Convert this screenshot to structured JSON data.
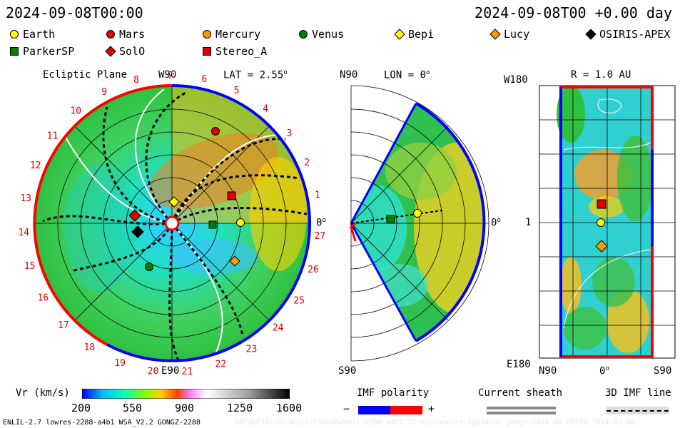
{
  "header": {
    "left_time": "2024-09-08T00:00",
    "right_time": "2024-09-08T00 +0.00 day"
  },
  "legend": [
    {
      "name": "Earth",
      "marker": "circle",
      "color": "#ffff00"
    },
    {
      "name": "Mars",
      "marker": "circle",
      "color": "#e00000"
    },
    {
      "name": "Mercury",
      "marker": "circle",
      "color": "#ff9900"
    },
    {
      "name": "Venus",
      "marker": "circle",
      "color": "#008000"
    },
    {
      "name": "Bepi",
      "marker": "diamond",
      "color": "#ffff00"
    },
    {
      "name": "Lucy",
      "marker": "diamond",
      "color": "#ff9900"
    },
    {
      "name": "OSIRIS-APEX",
      "marker": "diamond",
      "color": "#000000"
    },
    {
      "name": "ParkerSP",
      "marker": "square",
      "color": "#008000"
    },
    {
      "name": "SolO",
      "marker": "diamond",
      "color": "#e00000"
    },
    {
      "name": "Stereo_A",
      "marker": "square",
      "color": "#e00000"
    }
  ],
  "ecliptic": {
    "title": "Ecliptic Plane",
    "lat": "LAT = 2.55",
    "top_label": "W90",
    "bottom_label": "E90",
    "right_label": "0",
    "carrington_numbers": [
      "1",
      "2",
      "3",
      "4",
      "5",
      "6",
      "7",
      "8",
      "9",
      "10",
      "11",
      "12",
      "13",
      "14",
      "15",
      "16",
      "17",
      "18",
      "19",
      "20",
      "21",
      "22",
      "23",
      "24",
      "25",
      "26",
      "27"
    ]
  },
  "meridional": {
    "lon": "LON = 0",
    "top_label": "N90",
    "bottom_label": "S90",
    "right_label": "0"
  },
  "sphere": {
    "title": "R = 1.0 AU",
    "top_left": "W180",
    "mid_left": "1",
    "bottom_left": "E180",
    "x_left": "N90",
    "x_mid": "0",
    "x_right": "S90"
  },
  "colorbar": {
    "title": "Vr (km/s)",
    "ticks": [
      "200",
      "550",
      "900",
      "1250",
      "1600"
    ]
  },
  "imf": {
    "title": "IMF polarity",
    "minus": "−",
    "plus": "+",
    "neg_color": "#0000ff",
    "pos_color": "#ff0000"
  },
  "sheath": {
    "title": "Current sheath"
  },
  "imfline": {
    "title": "3D IMF line"
  },
  "footer": {
    "left": "ENLIL-2.7 lowres-2288-a4b1 WSA_V2.2 GONGZ-2288",
    "right": "UNIQUEID=20138154/256x30x90x1.2288-a4b1.1E-mcp1ann1cd-1g53d5d2.gongz-2024-09-08T00  2024-09-08"
  }
}
